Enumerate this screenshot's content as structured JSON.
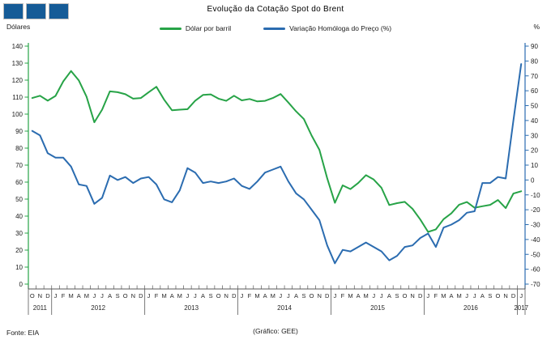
{
  "header": {
    "title": "Evolução da Cotação Spot do Brent",
    "logo_squares": 3,
    "logo_color": "#155b97"
  },
  "axes": {
    "left_unit": "Dólares",
    "right_unit": "%"
  },
  "legend": {
    "series": [
      {
        "label": "Dólar por barril",
        "color": "#27a347"
      },
      {
        "label": "Variação Homóloga do Preço (%)",
        "color": "#2b6cb0"
      }
    ]
  },
  "chart_data": {
    "type": "line",
    "title": "Evolução da Cotação Spot do Brent",
    "grid": false,
    "legend_position": "top",
    "x_months": [
      "O",
      "N",
      "D",
      "J",
      "F",
      "M",
      "A",
      "M",
      "J",
      "J",
      "A",
      "S",
      "O",
      "N",
      "D",
      "J",
      "F",
      "M",
      "A",
      "M",
      "J",
      "J",
      "A",
      "S",
      "O",
      "N",
      "D",
      "J",
      "F",
      "M",
      "A",
      "M",
      "J",
      "J",
      "A",
      "S",
      "O",
      "N",
      "D",
      "J",
      "F",
      "M",
      "A",
      "M",
      "J",
      "J",
      "A",
      "S",
      "O",
      "N",
      "D",
      "J",
      "F",
      "M",
      "A",
      "M",
      "J",
      "J",
      "A",
      "S",
      "O",
      "N",
      "D",
      "J"
    ],
    "year_groups": [
      {
        "year": "2011",
        "months": 3
      },
      {
        "year": "2012",
        "months": 12
      },
      {
        "year": "2013",
        "months": 12
      },
      {
        "year": "2014",
        "months": 12
      },
      {
        "year": "2015",
        "months": 12
      },
      {
        "year": "2016",
        "months": 12
      },
      {
        "year": "2017",
        "months": 1
      }
    ],
    "left_axis": {
      "min": 0,
      "max": 140,
      "step": 10,
      "unit": "Dólares",
      "color": "#27a347"
    },
    "right_axis": {
      "min": -70,
      "max": 90,
      "step": 10,
      "unit": "%",
      "color": "#2b6cb0"
    },
    "series": [
      {
        "name": "Dólar por barril",
        "axis": "left",
        "color": "#27a347",
        "values": [
          109.5,
          110.8,
          107.9,
          110.7,
          119.3,
          125.4,
          119.8,
          110.3,
          95.2,
          102.6,
          113.4,
          112.9,
          111.7,
          109.1,
          109.5,
          112.9,
          116.1,
          108.5,
          102.3,
          102.6,
          102.9,
          107.9,
          111.3,
          111.6,
          109.1,
          107.8,
          110.8,
          108.1,
          108.9,
          107.5,
          107.8,
          109.5,
          111.8,
          106.8,
          101.6,
          97.1,
          87.4,
          79.0,
          62.3,
          47.8,
          58.1,
          55.9,
          59.5,
          64.1,
          61.5,
          56.6,
          46.5,
          47.6,
          48.4,
          44.3,
          38.0,
          30.7,
          32.2,
          38.2,
          41.6,
          46.7,
          48.3,
          44.9,
          45.8,
          46.6,
          49.5,
          44.7,
          53.3,
          54.6
        ]
      },
      {
        "name": "Variação Homóloga do Preço (%)",
        "axis": "right",
        "color": "#2b6cb0",
        "values": [
          33,
          30,
          18,
          15,
          15,
          9,
          -3,
          -4,
          -16,
          -12,
          3,
          0,
          2,
          -2,
          1,
          2,
          -3,
          -13,
          -15,
          -7,
          8,
          5,
          -2,
          -1,
          -2,
          -1,
          1,
          -4,
          -6,
          -1,
          5,
          7,
          9,
          -1,
          -9,
          -13,
          -20,
          -27,
          -44,
          -56,
          -47,
          -48,
          -45,
          -42,
          -45,
          -48,
          -54,
          -51,
          -45,
          -44,
          -39,
          -36,
          -45,
          -32,
          -30,
          -27,
          -22,
          -21,
          -2,
          -2,
          2,
          1,
          40,
          78
        ]
      }
    ]
  },
  "footer": {
    "source": "Fonte: EIA",
    "credit": "(Gráfico: GEE)"
  }
}
